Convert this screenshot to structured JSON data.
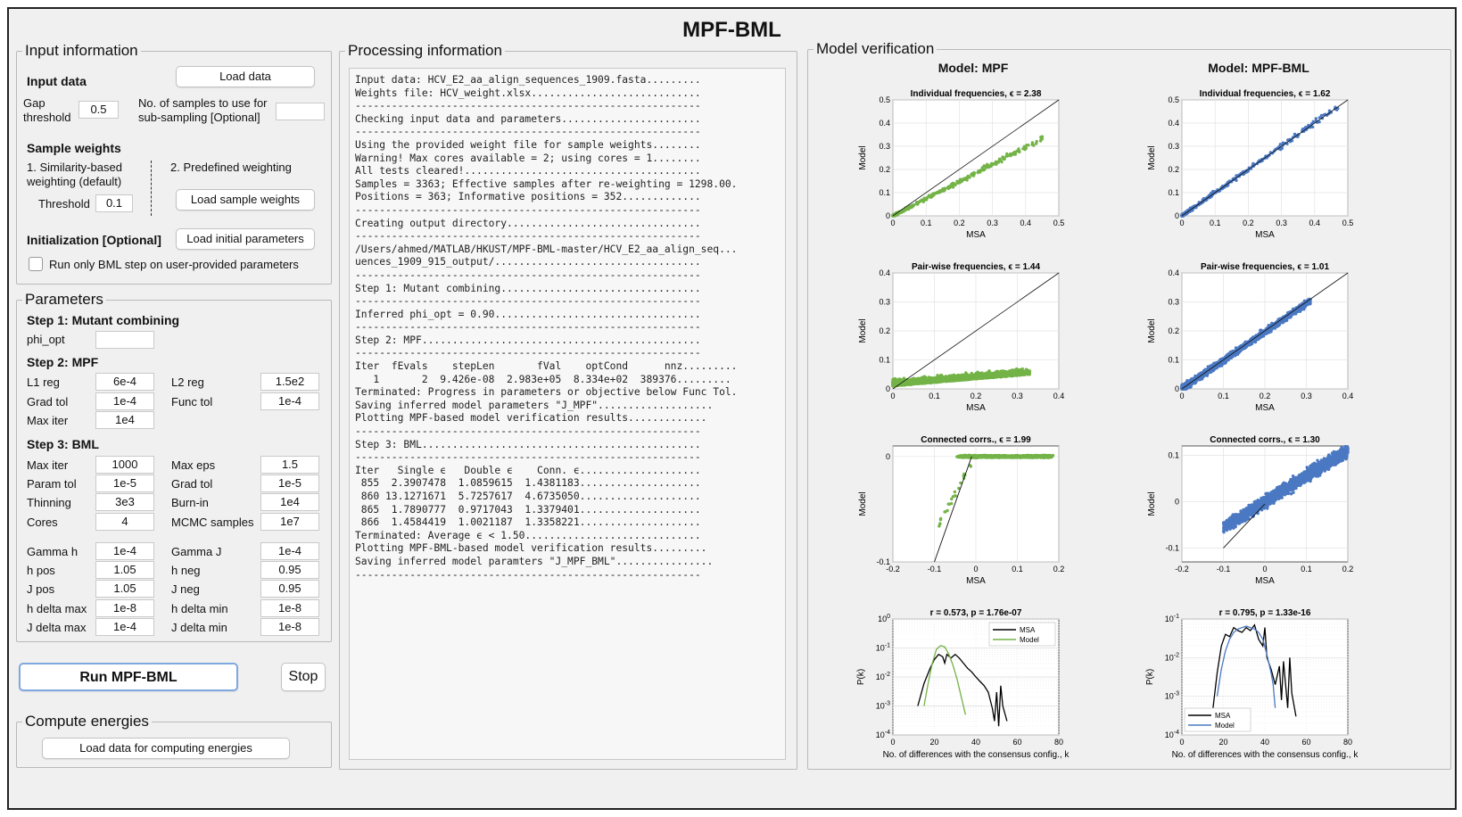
{
  "app_title": "MPF-BML",
  "colors": {
    "mpf_points": "#73b347",
    "bml_points": "#4a78c2",
    "msa_line": "#000000"
  },
  "input_info": {
    "title": "Input information",
    "input_data_label": "Input data",
    "load_data_label": "Load data",
    "gap_threshold_label": "Gap threshold",
    "gap_threshold_value": "0.5",
    "samples_label": "No. of samples to use for sub-sampling [Optional]",
    "samples_value": "",
    "sample_weights_label": "Sample weights",
    "similarity_label": "1. Similarity-based weighting (default)",
    "predefined_label": "2. Predefined weighting",
    "threshold_label": "Threshold",
    "threshold_value": "0.1",
    "load_sample_weights_label": "Load sample weights",
    "init_label": "Initialization [Optional]",
    "load_init_label": "Load initial parameters",
    "run_bml_only_label": "Run only BML step on user-provided parameters"
  },
  "parameters": {
    "title": "Parameters",
    "step1": {
      "title": "Step 1: Mutant combining",
      "phi_opt_label": "phi_opt",
      "phi_opt_value": ""
    },
    "step2": {
      "title": "Step 2: MPF",
      "l1_label": "L1 reg",
      "l1_value": "6e-4",
      "l2_label": "L2 reg",
      "l2_value": "1.5e2",
      "grad_tol_label": "Grad tol",
      "grad_tol_value": "1e-4",
      "func_tol_label": "Func tol",
      "func_tol_value": "1e-4",
      "max_iter_label": "Max iter",
      "max_iter_value": "1e4"
    },
    "step3": {
      "title": "Step 3: BML",
      "max_iter_label": "Max iter",
      "max_iter_value": "1000",
      "max_eps_label": "Max eps",
      "max_eps_value": "1.5",
      "param_tol_label": "Param tol",
      "param_tol_value": "1e-5",
      "grad_tol_label": "Grad tol",
      "grad_tol_value": "1e-5",
      "thinning_label": "Thinning",
      "thinning_value": "3e3",
      "burnin_label": "Burn-in",
      "burnin_value": "1e4",
      "cores_label": "Cores",
      "cores_value": "4",
      "mcmc_label": "MCMC samples",
      "mcmc_value": "1e7",
      "gamma_h_label": "Gamma h",
      "gamma_h_value": "1e-4",
      "gamma_j_label": "Gamma J",
      "gamma_j_value": "1e-4",
      "h_pos_label": "h pos",
      "h_pos_value": "1.05",
      "h_neg_label": "h neg",
      "h_neg_value": "0.95",
      "j_pos_label": "J pos",
      "j_pos_value": "1.05",
      "j_neg_label": "J neg",
      "j_neg_value": "0.95",
      "h_dmax_label": "h delta max",
      "h_dmax_value": "1e-8",
      "h_dmin_label": "h delta min",
      "h_dmin_value": "1e-8",
      "j_dmax_label": "J delta max",
      "j_dmax_value": "1e-4",
      "j_dmin_label": "J delta min",
      "j_dmin_value": "1e-8"
    }
  },
  "actions": {
    "run_label": "Run MPF-BML",
    "stop_label": "Stop"
  },
  "compute_energies": {
    "title": "Compute energies",
    "load_label": "Load data for computing energies"
  },
  "processing": {
    "title": "Processing information",
    "lines": [
      "Input data: HCV_E2_aa_align_sequences_1909.fasta.........",
      "Weights file: HCV_weight.xlsx............................",
      "---------------------------------------------------------",
      "Checking input data and parameters.......................",
      "---------------------------------------------------------",
      "Using the provided weight file for sample weights........",
      "Warning! Max cores available = 2; using cores = 1........",
      "All tests cleared!.......................................",
      "Samples = 3363; Effective samples after re-weighting = 1298.00.",
      "Positions = 363; Informative positions = 352.............",
      "---------------------------------------------------------",
      "Creating output directory................................",
      "---------------------------------------------------------",
      "/Users/ahmed/MATLAB/HKUST/MPF-BML-master/HCV_E2_aa_align_seq...",
      "uences_1909_915_output/..................................",
      "---------------------------------------------------------",
      "Step 1: Mutant combining.................................",
      "---------------------------------------------------------",
      "Inferred phi_opt = 0.90..................................",
      "---------------------------------------------------------",
      "Step 2: MPF..............................................",
      "---------------------------------------------------------",
      "Iter  fEvals    stepLen       fVal    optCond      nnz.........",
      "   1       2  9.426e-08  2.983e+05  8.334e+02  389376.........",
      "Terminated: Progress in parameters or objective below Func Tol.",
      "Saving inferred model parameters \"J_MPF\"...................",
      "Plotting MPF-based model verification results.............",
      "---------------------------------------------------------",
      "Step 3: BML..............................................",
      "---------------------------------------------------------",
      "Iter   Single ϵ   Double ϵ    Conn. ϵ....................",
      " 855  2.3907478  1.0859615  1.4381183....................",
      " 860 13.1271671  5.7257617  4.6735050....................",
      " 865  1.7890777  0.9717043  1.3379401....................",
      " 866  1.4584419  1.0021187  1.3358221....................",
      "Terminated: Average ϵ < 1.50.............................",
      "Plotting MPF-BML-based model verification results.........",
      "Saving inferred model paramters \"J_MPF_BML\"................",
      "---------------------------------------------------------"
    ]
  },
  "verification": {
    "title": "Model verification",
    "col_mpf": "Model: MPF",
    "col_bml": "Model: MPF-BML",
    "plots": {
      "mpf_ind": {
        "title": "Individual frequencies, ϵ = 2.38",
        "xlabel": "MSA",
        "ylabel": "Model",
        "xlim": [
          0,
          0.5
        ],
        "ylim": [
          0,
          0.5
        ],
        "ticks": [
          "0",
          "0.1",
          "0.2",
          "0.3",
          "0.4",
          "0.5"
        ]
      },
      "bml_ind": {
        "title": "Individual frequencies, ϵ = 1.62",
        "xlabel": "MSA",
        "ylabel": "Model",
        "xlim": [
          0,
          0.5
        ],
        "ylim": [
          0,
          0.5
        ],
        "ticks": [
          "0",
          "0.1",
          "0.2",
          "0.3",
          "0.4",
          "0.5"
        ]
      },
      "mpf_pair": {
        "title": "Pair-wise frequencies, ϵ = 1.44",
        "xlabel": "MSA",
        "ylabel": "Model",
        "xlim": [
          0,
          0.4
        ],
        "ylim": [
          0,
          0.4
        ],
        "ticks": [
          "0",
          "0.1",
          "0.2",
          "0.3",
          "0.4"
        ]
      },
      "bml_pair": {
        "title": "Pair-wise frequencies, ϵ = 1.01",
        "xlabel": "MSA",
        "ylabel": "Model",
        "xlim": [
          0,
          0.4
        ],
        "ylim": [
          0,
          0.4
        ],
        "ticks": [
          "0",
          "0.1",
          "0.2",
          "0.3",
          "0.4"
        ]
      },
      "mpf_conn": {
        "title": "Connected corrs., ϵ = 1.99",
        "xlabel": "MSA",
        "ylabel": "Model",
        "xlim": [
          -0.2,
          0.2
        ],
        "ylim": [
          -0.1,
          0.01
        ],
        "xticks": [
          "-0.2",
          "-0.1",
          "0",
          "0.1",
          "0.2"
        ],
        "yticks": [
          "-0.1",
          "0"
        ]
      },
      "bml_conn": {
        "title": "Connected corrs., ϵ = 1.30",
        "xlabel": "MSA",
        "ylabel": "Model",
        "xlim": [
          -0.2,
          0.2
        ],
        "ylim": [
          -0.13,
          0.12
        ],
        "xticks": [
          "-0.2",
          "-0.1",
          "0",
          "0.1",
          "0.2"
        ],
        "yticks": [
          "-0.1",
          "0",
          "0.1"
        ]
      },
      "mpf_pk": {
        "title": "r = 0.573, p = 1.76e-07",
        "xlabel": "No. of differences with the consensus config., k",
        "ylabel": "P(k)",
        "xlim": [
          0,
          80
        ],
        "ylog": [
          -4,
          0
        ],
        "xticks": [
          "0",
          "20",
          "40",
          "60",
          "80"
        ],
        "legend": [
          "MSA",
          "Model"
        ],
        "legend_pos": "top-right"
      },
      "bml_pk": {
        "title": "r = 0.795, p = 1.33e-16",
        "xlabel": "No. of differences with the consensus config., k",
        "ylabel": "P(k)",
        "xlim": [
          0,
          80
        ],
        "ylog": [
          -4,
          -1
        ],
        "xticks": [
          "0",
          "20",
          "40",
          "60",
          "80"
        ],
        "legend": [
          "MSA",
          "Model"
        ],
        "legend_pos": "bottom-left"
      }
    }
  },
  "chart_data": [
    {
      "type": "scatter",
      "title": "Individual frequencies, ϵ = 2.38",
      "xlabel": "MSA",
      "ylabel": "Model",
      "xlim": [
        0,
        0.5
      ],
      "ylim": [
        0,
        0.5
      ],
      "grid": true,
      "diagonal": true,
      "trend_slope": 0.74,
      "x_max": 0.45
    },
    {
      "type": "scatter",
      "title": "Individual frequencies, ϵ = 1.62",
      "xlabel": "MSA",
      "ylabel": "Model",
      "xlim": [
        0,
        0.5
      ],
      "ylim": [
        0,
        0.5
      ],
      "grid": true,
      "diagonal": true,
      "trend_slope": 1.0,
      "x_max": 0.47
    },
    {
      "type": "scatter",
      "title": "Pair-wise frequencies, ϵ = 1.44",
      "xlabel": "MSA",
      "ylabel": "Model",
      "xlim": [
        0,
        0.4
      ],
      "ylim": [
        0,
        0.4
      ],
      "grid": true,
      "diagonal": true,
      "trend_slope": 0.12,
      "x_max": 0.33
    },
    {
      "type": "scatter",
      "title": "Pair-wise frequencies, ϵ = 1.01",
      "xlabel": "MSA",
      "ylabel": "Model",
      "xlim": [
        0,
        0.4
      ],
      "ylim": [
        0,
        0.4
      ],
      "grid": true,
      "diagonal": true,
      "trend_slope": 0.98,
      "x_max": 0.31
    },
    {
      "type": "scatter",
      "title": "Connected corrs., ϵ = 1.99",
      "xlabel": "MSA",
      "ylabel": "Model",
      "xlim": [
        -0.2,
        0.2
      ],
      "ylim": [
        -0.1,
        0.01
      ],
      "grid": true,
      "fit_line": [
        [
          -0.1,
          -0.1
        ],
        [
          -0.01,
          0.0
        ]
      ]
    },
    {
      "type": "scatter",
      "title": "Connected corrs., ϵ = 1.30",
      "xlabel": "MSA",
      "ylabel": "Model",
      "xlim": [
        -0.2,
        0.2
      ],
      "ylim": [
        -0.13,
        0.12
      ],
      "grid": true,
      "fit_line": [
        [
          -0.1,
          -0.1
        ],
        [
          0,
          -0.005
        ]
      ]
    },
    {
      "type": "line",
      "title": "r = 0.573, p = 1.76e-07",
      "xlabel": "No. of differences with the consensus config., k",
      "ylabel": "P(k)",
      "xlim": [
        0,
        80
      ],
      "yscale": "log",
      "ylim": [
        0.0001,
        1
      ],
      "series": [
        {
          "name": "MSA",
          "x": [
            12,
            15,
            18,
            20,
            22,
            24,
            25,
            26,
            28,
            30,
            32,
            34,
            36,
            38,
            40,
            42,
            44,
            46,
            48,
            49,
            50,
            51,
            52,
            53,
            55
          ],
          "y": [
            0.001,
            0.006,
            0.02,
            0.04,
            0.06,
            0.05,
            0.03,
            0.06,
            0.045,
            0.06,
            0.045,
            0.03,
            0.02,
            0.015,
            0.01,
            0.007,
            0.005,
            0.003,
            0.0008,
            0.0003,
            0.003,
            0.0002,
            0.005,
            0.001,
            0.0003
          ]
        },
        {
          "name": "Model",
          "x": [
            15,
            17,
            19,
            21,
            23,
            25,
            27,
            29,
            31,
            33,
            35
          ],
          "y": [
            0.001,
            0.006,
            0.03,
            0.09,
            0.12,
            0.11,
            0.06,
            0.025,
            0.008,
            0.002,
            0.0005
          ]
        }
      ]
    },
    {
      "type": "line",
      "title": "r = 0.795, p = 1.33e-16",
      "xlabel": "No. of differences with the consensus config., k",
      "ylabel": "P(k)",
      "xlim": [
        0,
        80
      ],
      "yscale": "log",
      "ylim": [
        0.0001,
        0.1
      ],
      "series": [
        {
          "name": "MSA",
          "x": [
            15,
            17,
            19,
            21,
            23,
            25,
            27,
            29,
            31,
            33,
            35,
            37,
            39,
            40,
            41,
            43,
            45,
            47,
            48,
            49,
            51,
            52,
            53,
            55
          ],
          "y": [
            0.0005,
            0.004,
            0.02,
            0.04,
            0.035,
            0.06,
            0.05,
            0.045,
            0.06,
            0.05,
            0.07,
            0.03,
            0.02,
            0.06,
            0.01,
            0.005,
            0.002,
            0.006,
            0.0008,
            0.008,
            0.0005,
            0.01,
            0.0012,
            0.0003
          ]
        },
        {
          "name": "Model",
          "x": [
            17,
            19,
            21,
            23,
            25,
            27,
            29,
            31,
            33,
            35,
            37,
            39,
            41,
            43,
            44,
            45
          ],
          "y": [
            0.001,
            0.005,
            0.015,
            0.03,
            0.045,
            0.055,
            0.06,
            0.065,
            0.06,
            0.055,
            0.045,
            0.03,
            0.012,
            0.004,
            0.002,
            0.0005
          ]
        }
      ]
    }
  ]
}
